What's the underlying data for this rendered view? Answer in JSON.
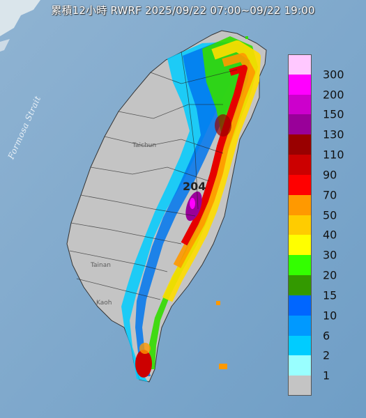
{
  "title": "累積12小時 RWRF 2025/09/22 07:00~09/22 19:00",
  "map": {
    "strait_label": "Formosa Strait",
    "cities": [
      "Taichun",
      "Tainan",
      "Kaoh"
    ],
    "peak_value": "204"
  },
  "legend": {
    "items": [
      {
        "label": "300",
        "color": "#ffc8ff"
      },
      {
        "label": "200",
        "color": "#ff00ff"
      },
      {
        "label": "150",
        "color": "#cc00cc"
      },
      {
        "label": "130",
        "color": "#990099"
      },
      {
        "label": "110",
        "color": "#990000"
      },
      {
        "label": "90",
        "color": "#cc0000"
      },
      {
        "label": "70",
        "color": "#ff0000"
      },
      {
        "label": "50",
        "color": "#ff9900"
      },
      {
        "label": "40",
        "color": "#ffcc00"
      },
      {
        "label": "30",
        "color": "#ffff00"
      },
      {
        "label": "20",
        "color": "#33ff00"
      },
      {
        "label": "15",
        "color": "#339900"
      },
      {
        "label": "10",
        "color": "#0066ff"
      },
      {
        "label": "6",
        "color": "#0099ff"
      },
      {
        "label": "2",
        "color": "#00ccff"
      },
      {
        "label": "1",
        "color": "#99ffff"
      },
      {
        "label": "",
        "color": "#c4c4c4"
      }
    ]
  }
}
